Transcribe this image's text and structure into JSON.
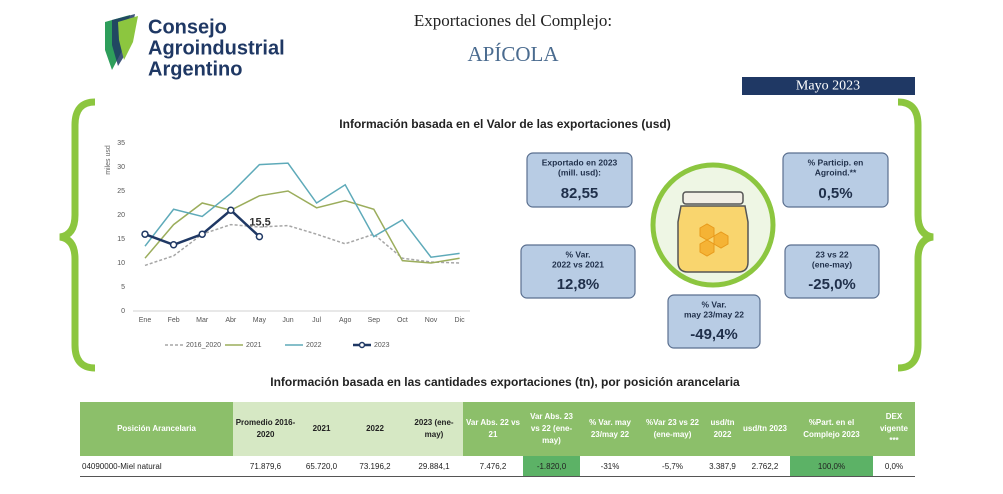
{
  "header": {
    "logo_lines": [
      "Consejo",
      "Agroindustrial",
      "Argentino"
    ],
    "title": "Exportaciones del Complejo:",
    "subtitle": "APÍCOLA",
    "date": "Mayo 2023"
  },
  "chart_data": {
    "type": "line",
    "title": "Información basada en el Valor de las exportaciones (usd)",
    "y_label": "miles usd",
    "categories": [
      "Ene",
      "Feb",
      "Mar",
      "Abr",
      "May",
      "Jun",
      "Jul",
      "Ago",
      "Sep",
      "Oct",
      "Nov",
      "Dic"
    ],
    "ylim": [
      0,
      35
    ],
    "yticks": [
      0,
      5,
      10,
      15,
      20,
      25,
      30,
      35
    ],
    "grid": false,
    "legend": "bottom",
    "series": [
      {
        "name": "2016_2020",
        "color": "#a6a6a6",
        "dashed": true,
        "values": [
          9.5,
          11.5,
          16,
          18,
          17.5,
          17.8,
          16,
          14,
          16,
          11,
          10.2,
          10
        ]
      },
      {
        "name": "2021",
        "color": "#9bad5c",
        "values": [
          11,
          18,
          22.5,
          21,
          24,
          25,
          21.5,
          23,
          21.2,
          10.5,
          10,
          11
        ]
      },
      {
        "name": "2022",
        "color": "#5eaab9",
        "values": [
          13.5,
          21.2,
          19.7,
          24.5,
          30.5,
          30.8,
          22.5,
          26.3,
          15.5,
          19,
          11.2,
          12
        ]
      },
      {
        "name": "2023",
        "color": "#1f3864",
        "markers": true,
        "values": [
          16,
          13.8,
          16,
          21,
          15.5,
          null,
          null,
          null,
          null,
          null,
          null,
          null
        ],
        "value_labels": [
          null,
          null,
          null,
          null,
          "15,5",
          null,
          null,
          null,
          null,
          null,
          null,
          null
        ]
      }
    ]
  },
  "kpis": [
    {
      "label": [
        "Exportado en 2023",
        "(mill. usd):"
      ],
      "value": "82,55"
    },
    {
      "label": [
        "% Particip. en",
        "Agroind.**"
      ],
      "value": "0,5%"
    },
    {
      "label": [
        "% Var.",
        "2022 vs 2021"
      ],
      "value": "12,8%"
    },
    {
      "label": [
        "23 vs 22",
        "(ene-may)"
      ],
      "value": "-25,0%"
    },
    {
      "label": [
        "% Var.",
        "may 23/may 22"
      ],
      "value": "-49,4%"
    }
  ],
  "table": {
    "title": "Información basada en las cantidades exportaciones (tn), por posición arancelaria",
    "headers": [
      "Posición Arancelaria",
      "Promedio 2016-2020",
      "2021",
      "2022",
      "2023 (ene-may)",
      "Var Abs. 22 vs 21",
      "Var Abs. 23 vs 22 (ene-may)",
      "% Var. may 23/may 22",
      "%Var 23 vs 22 (ene-may)",
      "usd/tn 2022",
      "usd/tn 2023",
      "%Part. en el Complejo 2023",
      "DEX vigente ***"
    ],
    "rows": [
      [
        "04090000-Miel natural",
        "71.879,6",
        "65.720,0",
        "73.196,2",
        "29.884,1",
        "7.476,2",
        "-1.820,0",
        "-31%",
        "-5,7%",
        "3.387,9",
        "2.762,2",
        "100,0%",
        "0,0%"
      ]
    ]
  }
}
